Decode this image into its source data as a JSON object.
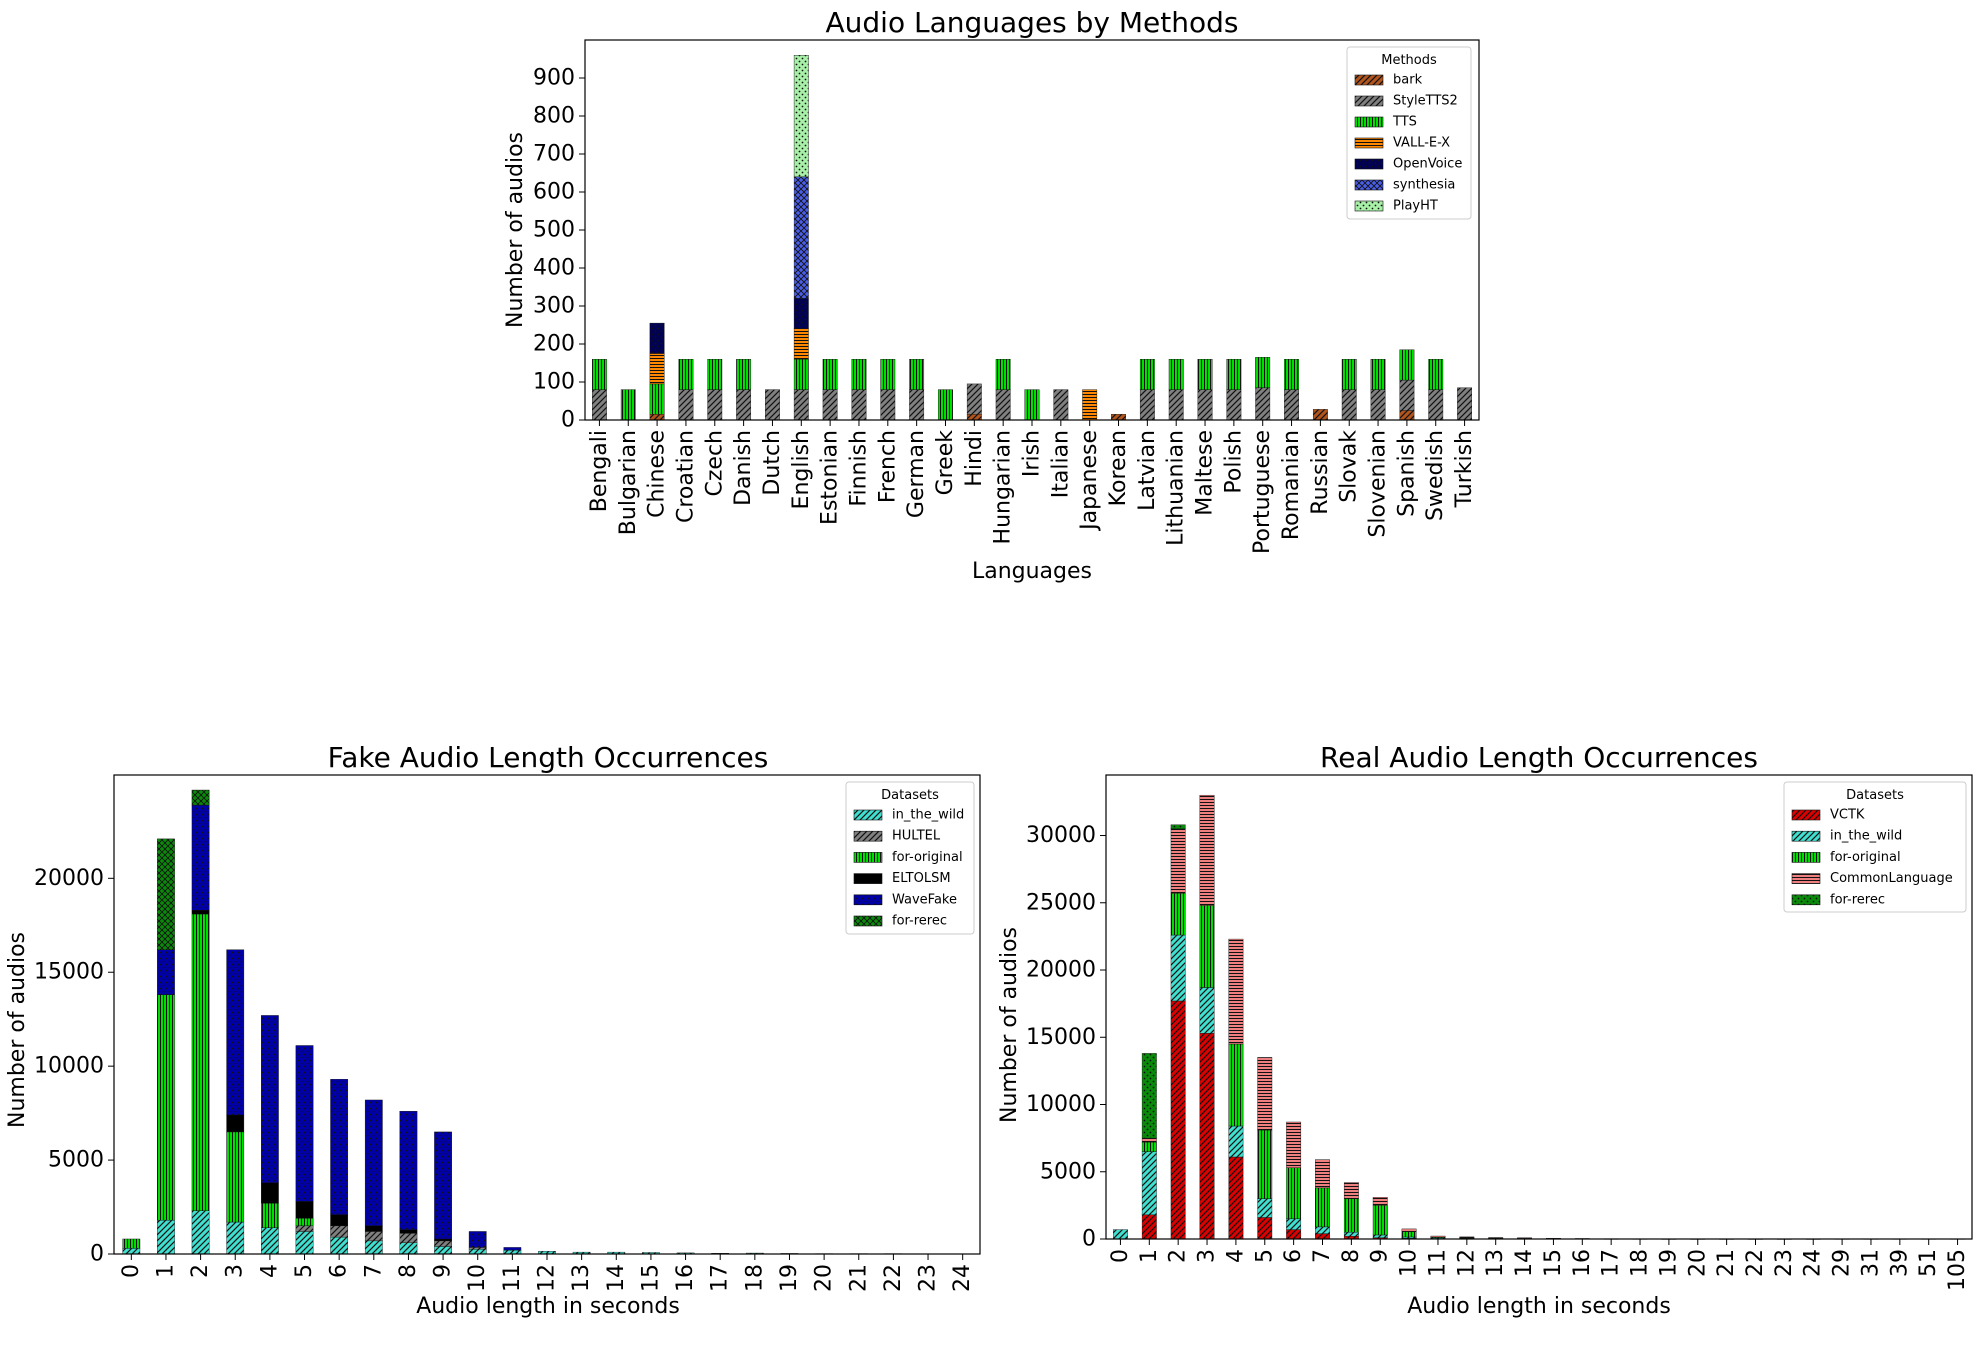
{
  "chart_data": [
    {
      "type": "bar",
      "stacked": true,
      "title": "Audio Languages by Methods",
      "xlabel": "Languages",
      "ylabel": "Number of audios",
      "ylim": [
        0,
        1000
      ],
      "yticks": [
        0,
        100,
        200,
        300,
        400,
        500,
        600,
        700,
        800,
        900
      ],
      "legend_title": "Methods",
      "legend_position": "top-right",
      "categories": [
        "Bengali",
        "Bulgarian",
        "Chinese",
        "Croatian",
        "Czech",
        "Danish",
        "Dutch",
        "English",
        "Estonian",
        "Finnish",
        "French",
        "German",
        "Greek",
        "Hindi",
        "Hungarian",
        "Irish",
        "Italian",
        "Japanese",
        "Korean",
        "Latvian",
        "Lithuanian",
        "Maltese",
        "Polish",
        "Portuguese",
        "Romanian",
        "Russian",
        "Slovak",
        "Slovenian",
        "Spanish",
        "Swedish",
        "Turkish"
      ],
      "series": [
        {
          "name": "bark",
          "color": "#b2551c",
          "pattern": "diag",
          "values": [
            0,
            0,
            15,
            0,
            0,
            0,
            0,
            0,
            0,
            0,
            0,
            0,
            0,
            15,
            0,
            0,
            0,
            0,
            15,
            0,
            0,
            0,
            0,
            0,
            0,
            28,
            0,
            0,
            25,
            0,
            0
          ]
        },
        {
          "name": "StyleTTS2",
          "color": "#808080",
          "pattern": "diag",
          "values": [
            80,
            0,
            0,
            80,
            80,
            80,
            80,
            80,
            80,
            80,
            80,
            80,
            0,
            80,
            80,
            0,
            80,
            0,
            0,
            80,
            80,
            80,
            80,
            85,
            80,
            0,
            80,
            80,
            80,
            80,
            85
          ]
        },
        {
          "name": "TTS",
          "color": "#00dd00",
          "pattern": "vert",
          "values": [
            80,
            80,
            80,
            80,
            80,
            80,
            0,
            80,
            80,
            80,
            80,
            80,
            80,
            0,
            80,
            80,
            0,
            0,
            0,
            80,
            80,
            80,
            80,
            80,
            80,
            0,
            80,
            80,
            80,
            80,
            0
          ]
        },
        {
          "name": "VALL-E-X",
          "color": "#ff8800",
          "pattern": "horiz",
          "values": [
            0,
            0,
            80,
            0,
            0,
            0,
            0,
            80,
            0,
            0,
            0,
            0,
            0,
            0,
            0,
            0,
            0,
            80,
            0,
            0,
            0,
            0,
            0,
            0,
            0,
            0,
            0,
            0,
            0,
            0,
            0
          ]
        },
        {
          "name": "OpenVoice",
          "color": "#000055",
          "pattern": "dots",
          "values": [
            0,
            0,
            80,
            0,
            0,
            0,
            0,
            80,
            0,
            0,
            0,
            0,
            0,
            0,
            0,
            0,
            0,
            0,
            0,
            0,
            0,
            0,
            0,
            0,
            0,
            0,
            0,
            0,
            0,
            0,
            0
          ]
        },
        {
          "name": "synthesia",
          "color": "#4a5ee8",
          "pattern": "cross",
          "values": [
            0,
            0,
            0,
            0,
            0,
            0,
            0,
            320,
            0,
            0,
            0,
            0,
            0,
            0,
            0,
            0,
            0,
            0,
            0,
            0,
            0,
            0,
            0,
            0,
            0,
            0,
            0,
            0,
            0,
            0,
            0
          ]
        },
        {
          "name": "PlayHT",
          "color": "#a8f0a8",
          "pattern": "dots",
          "values": [
            0,
            0,
            0,
            0,
            0,
            0,
            0,
            320,
            0,
            0,
            0,
            0,
            0,
            0,
            0,
            0,
            0,
            0,
            0,
            0,
            0,
            0,
            0,
            0,
            0,
            0,
            0,
            0,
            0,
            0,
            0
          ]
        }
      ]
    },
    {
      "type": "bar",
      "stacked": true,
      "title": "Fake Audio Length Occurrences",
      "xlabel": "Audio length in seconds",
      "ylabel": "Number of audios",
      "ylim": [
        0,
        25500
      ],
      "yticks": [
        0,
        5000,
        10000,
        15000,
        20000
      ],
      "legend_title": "Datasets",
      "legend_position": "top-right",
      "categories": [
        "0",
        "1",
        "2",
        "3",
        "4",
        "5",
        "6",
        "7",
        "8",
        "9",
        "10",
        "11",
        "12",
        "13",
        "14",
        "15",
        "16",
        "17",
        "18",
        "19",
        "20",
        "21",
        "22",
        "23",
        "24"
      ],
      "series": [
        {
          "name": "in_the_wild",
          "color": "#40e0d0",
          "pattern": "diag",
          "values": [
            300,
            1800,
            2300,
            1700,
            1400,
            1200,
            900,
            700,
            600,
            400,
            250,
            200,
            150,
            100,
            100,
            80,
            60,
            40,
            50,
            30,
            20,
            20,
            20,
            15,
            15
          ]
        },
        {
          "name": "HULTEL",
          "color": "#808080",
          "pattern": "diag",
          "values": [
            0,
            0,
            0,
            0,
            0,
            300,
            600,
            500,
            500,
            300,
            100,
            0,
            0,
            0,
            0,
            0,
            0,
            0,
            0,
            0,
            0,
            0,
            0,
            0,
            0
          ]
        },
        {
          "name": "for-original",
          "color": "#00dd00",
          "pattern": "vert",
          "values": [
            500,
            12000,
            15800,
            4800,
            1300,
            400,
            0,
            0,
            0,
            0,
            0,
            0,
            0,
            0,
            0,
            0,
            0,
            0,
            0,
            0,
            0,
            0,
            0,
            0,
            0
          ]
        },
        {
          "name": "ELTOLSM",
          "color": "#000000",
          "pattern": "solid",
          "values": [
            0,
            0,
            200,
            900,
            1100,
            900,
            600,
            300,
            200,
            100,
            0,
            0,
            0,
            0,
            0,
            0,
            0,
            0,
            0,
            0,
            0,
            0,
            0,
            0,
            0
          ]
        },
        {
          "name": "WaveFake",
          "color": "#0000aa",
          "pattern": "dots",
          "values": [
            0,
            2400,
            5600,
            8800,
            8900,
            8300,
            7200,
            6700,
            6300,
            5700,
            850,
            150,
            0,
            0,
            0,
            0,
            0,
            0,
            0,
            0,
            0,
            0,
            0,
            0,
            0
          ]
        },
        {
          "name": "for-rerec",
          "color": "#0a8a0a",
          "pattern": "cross",
          "values": [
            0,
            5900,
            800,
            0,
            0,
            0,
            0,
            0,
            0,
            0,
            0,
            0,
            0,
            0,
            0,
            0,
            0,
            0,
            0,
            0,
            0,
            0,
            0,
            0,
            0
          ]
        }
      ]
    },
    {
      "type": "bar",
      "stacked": true,
      "title": "Real Audio Length Occurrences",
      "xlabel": "Audio length in seconds",
      "ylabel": "Number of audios",
      "ylim": [
        0,
        34500
      ],
      "yticks": [
        0,
        5000,
        10000,
        15000,
        20000,
        25000,
        30000
      ],
      "legend_title": "Datasets",
      "legend_position": "top-right",
      "categories": [
        "0",
        "1",
        "2",
        "3",
        "4",
        "5",
        "6",
        "7",
        "8",
        "9",
        "10",
        "11",
        "12",
        "13",
        "14",
        "15",
        "16",
        "17",
        "18",
        "19",
        "20",
        "21",
        "22",
        "23",
        "24",
        "29",
        "31",
        "39",
        "51",
        "105"
      ],
      "series": [
        {
          "name": "VCTK",
          "color": "#dd0000",
          "pattern": "diag",
          "values": [
            0,
            1800,
            17700,
            15300,
            6100,
            1600,
            700,
            400,
            200,
            100,
            50,
            0,
            0,
            0,
            0,
            0,
            0,
            0,
            0,
            0,
            0,
            0,
            0,
            0,
            0,
            0,
            0,
            0,
            0,
            0
          ]
        },
        {
          "name": "in_the_wild",
          "color": "#40e0d0",
          "pattern": "diag",
          "values": [
            700,
            4700,
            4900,
            3400,
            2300,
            1400,
            800,
            500,
            300,
            200,
            100,
            80,
            60,
            40,
            30,
            20,
            15,
            10,
            10,
            5,
            5,
            5,
            5,
            5,
            5,
            0,
            0,
            0,
            0,
            0
          ]
        },
        {
          "name": "for-original",
          "color": "#00dd00",
          "pattern": "vert",
          "values": [
            0,
            700,
            3100,
            6100,
            6100,
            5100,
            3800,
            2900,
            2500,
            2200,
            400,
            60,
            40,
            30,
            20,
            10,
            5,
            5,
            0,
            0,
            0,
            0,
            0,
            0,
            0,
            0,
            0,
            0,
            0,
            0
          ]
        },
        {
          "name": "CommonLanguage",
          "color": "#f08080",
          "pattern": "horiz",
          "values": [
            0,
            300,
            4800,
            8200,
            7800,
            5400,
            3400,
            2100,
            1200,
            600,
            200,
            80,
            60,
            40,
            40,
            30,
            20,
            10,
            10,
            10,
            10,
            10,
            10,
            10,
            10,
            10,
            10,
            10,
            10,
            10
          ]
        },
        {
          "name": "for-rerec",
          "color": "#0a8a0a",
          "pattern": "dots",
          "values": [
            0,
            6300,
            300,
            0,
            0,
            0,
            0,
            0,
            0,
            0,
            0,
            0,
            0,
            0,
            0,
            0,
            0,
            0,
            0,
            0,
            0,
            0,
            0,
            0,
            0,
            0,
            0,
            0,
            0,
            0
          ]
        }
      ]
    }
  ]
}
